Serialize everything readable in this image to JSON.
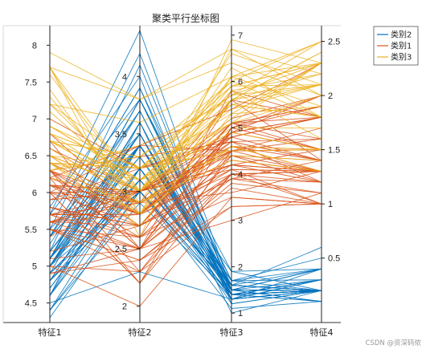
{
  "chart_data": {
    "type": "parallel-coordinates",
    "title": "聚类平行坐标图",
    "axes": [
      {
        "name": "特征1",
        "range": [
          4.3,
          8.2
        ],
        "ticks": [
          "8",
          "7.5",
          "7",
          "6.5",
          "6",
          "5.5",
          "5",
          "4.5"
        ],
        "tick_values": [
          8,
          7.5,
          7,
          6.5,
          6,
          5.5,
          5,
          4.5
        ]
      },
      {
        "name": "特征2",
        "range": [
          1.9,
          4.4
        ],
        "ticks": [
          "4",
          "3.5",
          "3",
          "2.5",
          "2"
        ],
        "tick_values": [
          4,
          3.5,
          3,
          2.5,
          2
        ]
      },
      {
        "name": "特征3",
        "range": [
          0.9,
          7.1
        ],
        "ticks": [
          "7",
          "6",
          "5",
          "4",
          "3",
          "2",
          "1"
        ],
        "tick_values": [
          7,
          6,
          5,
          4,
          3,
          2,
          1
        ]
      },
      {
        "name": "特征4",
        "range": [
          -0.05,
          2.6
        ],
        "ticks": [
          "2.5",
          "2",
          "1.5",
          "1",
          "0.5"
        ],
        "tick_values": [
          2.5,
          2,
          1.5,
          1,
          0.5
        ]
      }
    ],
    "series": [
      {
        "name": "类别2",
        "color": "#0072BD",
        "lines": [
          [
            5.1,
            3.5,
            1.4,
            0.2
          ],
          [
            4.9,
            3.0,
            1.4,
            0.2
          ],
          [
            4.7,
            3.2,
            1.3,
            0.2
          ],
          [
            4.6,
            3.1,
            1.5,
            0.2
          ],
          [
            5.0,
            3.6,
            1.4,
            0.2
          ],
          [
            5.4,
            3.9,
            1.7,
            0.4
          ],
          [
            4.6,
            3.4,
            1.4,
            0.3
          ],
          [
            5.0,
            3.4,
            1.5,
            0.2
          ],
          [
            4.4,
            2.9,
            1.4,
            0.2
          ],
          [
            4.9,
            3.1,
            1.5,
            0.1
          ],
          [
            5.4,
            3.7,
            1.5,
            0.2
          ],
          [
            4.8,
            3.4,
            1.6,
            0.2
          ],
          [
            4.8,
            3.0,
            1.4,
            0.1
          ],
          [
            4.3,
            3.0,
            1.1,
            0.1
          ],
          [
            5.8,
            4.0,
            1.2,
            0.2
          ],
          [
            5.7,
            4.4,
            1.5,
            0.4
          ],
          [
            5.4,
            3.9,
            1.3,
            0.4
          ],
          [
            5.1,
            3.5,
            1.4,
            0.3
          ],
          [
            5.7,
            3.8,
            1.7,
            0.3
          ],
          [
            5.1,
            3.8,
            1.5,
            0.3
          ],
          [
            5.4,
            3.4,
            1.7,
            0.2
          ],
          [
            5.1,
            3.7,
            1.5,
            0.4
          ],
          [
            4.6,
            3.6,
            1.0,
            0.2
          ],
          [
            5.1,
            3.3,
            1.7,
            0.5
          ],
          [
            4.8,
            3.4,
            1.9,
            0.2
          ],
          [
            5.0,
            3.0,
            1.6,
            0.2
          ],
          [
            5.0,
            3.4,
            1.6,
            0.4
          ],
          [
            5.2,
            3.5,
            1.5,
            0.2
          ],
          [
            5.2,
            3.4,
            1.4,
            0.2
          ],
          [
            4.7,
            3.2,
            1.6,
            0.2
          ],
          [
            4.8,
            3.1,
            1.6,
            0.2
          ],
          [
            5.4,
            3.4,
            1.5,
            0.4
          ],
          [
            5.2,
            4.1,
            1.5,
            0.1
          ],
          [
            5.5,
            4.2,
            1.4,
            0.2
          ],
          [
            4.9,
            3.1,
            1.5,
            0.2
          ],
          [
            5.0,
            3.2,
            1.2,
            0.2
          ],
          [
            5.5,
            3.5,
            1.3,
            0.2
          ],
          [
            4.9,
            3.6,
            1.4,
            0.1
          ],
          [
            4.4,
            3.0,
            1.3,
            0.2
          ],
          [
            5.1,
            3.4,
            1.5,
            0.2
          ],
          [
            5.0,
            3.5,
            1.3,
            0.3
          ],
          [
            4.5,
            2.3,
            1.3,
            0.3
          ],
          [
            4.4,
            3.2,
            1.3,
            0.2
          ],
          [
            5.0,
            3.5,
            1.6,
            0.6
          ],
          [
            5.1,
            3.8,
            1.9,
            0.4
          ],
          [
            4.8,
            3.0,
            1.4,
            0.3
          ],
          [
            5.1,
            3.8,
            1.6,
            0.2
          ],
          [
            4.6,
            3.2,
            1.4,
            0.2
          ],
          [
            5.3,
            3.7,
            1.5,
            0.2
          ],
          [
            5.0,
            3.3,
            1.4,
            0.2
          ]
        ]
      },
      {
        "name": "类别1",
        "color": "#D95319",
        "lines": [
          [
            7.0,
            3.2,
            4.7,
            1.4
          ],
          [
            6.4,
            3.2,
            4.5,
            1.5
          ],
          [
            5.5,
            2.3,
            4.0,
            1.3
          ],
          [
            6.5,
            2.8,
            4.6,
            1.5
          ],
          [
            5.7,
            2.8,
            4.5,
            1.3
          ],
          [
            6.3,
            3.3,
            4.7,
            1.6
          ],
          [
            4.9,
            2.4,
            3.3,
            1.0
          ],
          [
            6.6,
            2.9,
            4.6,
            1.3
          ],
          [
            5.2,
            2.7,
            3.9,
            1.4
          ],
          [
            5.0,
            2.0,
            3.5,
            1.0
          ],
          [
            5.9,
            3.0,
            4.2,
            1.5
          ],
          [
            6.0,
            2.2,
            4.0,
            1.0
          ],
          [
            6.1,
            2.9,
            4.7,
            1.4
          ],
          [
            5.6,
            2.9,
            3.6,
            1.3
          ],
          [
            5.6,
            3.0,
            4.5,
            1.5
          ],
          [
            5.8,
            2.7,
            4.1,
            1.0
          ],
          [
            6.2,
            2.2,
            4.5,
            1.5
          ],
          [
            5.6,
            2.5,
            3.9,
            1.1
          ],
          [
            5.9,
            3.2,
            4.8,
            1.8
          ],
          [
            6.1,
            2.8,
            4.0,
            1.3
          ],
          [
            6.3,
            2.5,
            4.9,
            1.5
          ],
          [
            6.1,
            2.8,
            4.7,
            1.2
          ],
          [
            6.4,
            2.9,
            4.3,
            1.3
          ],
          [
            6.6,
            3.0,
            4.4,
            1.4
          ],
          [
            6.8,
            2.8,
            4.8,
            1.4
          ],
          [
            6.0,
            2.9,
            4.5,
            1.5
          ],
          [
            5.7,
            2.6,
            3.5,
            1.0
          ],
          [
            5.5,
            2.4,
            3.8,
            1.1
          ],
          [
            5.5,
            2.4,
            3.7,
            1.0
          ],
          [
            5.8,
            2.7,
            3.9,
            1.2
          ],
          [
            6.0,
            2.7,
            5.1,
            1.6
          ],
          [
            5.4,
            3.0,
            4.5,
            1.5
          ],
          [
            6.0,
            3.4,
            4.5,
            1.6
          ],
          [
            6.3,
            2.3,
            4.4,
            1.3
          ],
          [
            5.6,
            3.0,
            4.1,
            1.3
          ],
          [
            5.5,
            2.5,
            4.0,
            1.3
          ],
          [
            5.5,
            2.6,
            4.4,
            1.2
          ],
          [
            6.1,
            3.0,
            4.6,
            1.4
          ],
          [
            5.8,
            2.6,
            4.0,
            1.2
          ],
          [
            5.0,
            2.3,
            3.3,
            1.0
          ],
          [
            5.6,
            2.7,
            4.2,
            1.3
          ],
          [
            5.7,
            3.0,
            4.2,
            1.2
          ],
          [
            5.7,
            2.9,
            4.2,
            1.3
          ],
          [
            6.2,
            2.9,
            4.3,
            1.3
          ],
          [
            5.1,
            2.5,
            3.0,
            1.1
          ],
          [
            5.7,
            2.8,
            4.1,
            1.3
          ],
          [
            5.8,
            2.7,
            5.1,
            1.9
          ],
          [
            6.3,
            2.9,
            5.6,
            1.8
          ],
          [
            4.9,
            2.5,
            4.5,
            1.7
          ],
          [
            6.7,
            2.5,
            5.8,
            1.8
          ],
          [
            5.7,
            2.5,
            5.0,
            2.0
          ],
          [
            6.0,
            2.2,
            5.0,
            1.5
          ],
          [
            5.6,
            2.8,
            4.9,
            2.0
          ],
          [
            6.3,
            2.7,
            4.9,
            1.8
          ],
          [
            6.2,
            2.8,
            4.8,
            1.8
          ],
          [
            6.1,
            3.0,
            4.9,
            1.8
          ],
          [
            6.3,
            2.8,
            5.1,
            1.5
          ],
          [
            6.1,
            2.6,
            5.6,
            1.4
          ],
          [
            6.0,
            3.0,
            4.8,
            1.8
          ],
          [
            5.8,
            2.7,
            5.1,
            1.9
          ],
          [
            6.3,
            2.5,
            5.0,
            1.9
          ],
          [
            6.5,
            3.0,
            5.2,
            2.0
          ],
          [
            6.2,
            3.4,
            5.4,
            2.3
          ],
          [
            5.9,
            3.0,
            5.1,
            1.8
          ]
        ]
      },
      {
        "name": "类别3",
        "color": "#EDB120",
        "lines": [
          [
            6.9,
            3.1,
            4.9,
            1.5
          ],
          [
            6.7,
            3.0,
            5.0,
            1.7
          ],
          [
            6.7,
            3.1,
            4.4,
            1.4
          ],
          [
            6.2,
            2.9,
            4.3,
            1.3
          ],
          [
            6.9,
            3.1,
            5.4,
            2.1
          ],
          [
            6.8,
            3.2,
            5.9,
            2.3
          ],
          [
            6.7,
            3.3,
            5.7,
            2.5
          ],
          [
            6.7,
            3.0,
            5.2,
            2.3
          ],
          [
            6.4,
            2.7,
            5.3,
            1.9
          ],
          [
            6.5,
            3.0,
            5.8,
            2.2
          ],
          [
            7.6,
            3.0,
            6.6,
            2.1
          ],
          [
            7.3,
            2.9,
            6.3,
            1.8
          ],
          [
            7.2,
            3.6,
            6.1,
            2.5
          ],
          [
            6.5,
            3.2,
            5.1,
            2.0
          ],
          [
            6.8,
            3.0,
            5.5,
            2.1
          ],
          [
            6.4,
            3.2,
            5.3,
            2.3
          ],
          [
            6.5,
            3.0,
            5.5,
            1.8
          ],
          [
            7.7,
            3.8,
            6.7,
            2.2
          ],
          [
            7.7,
            2.6,
            6.9,
            2.3
          ],
          [
            6.9,
            3.2,
            5.7,
            2.3
          ],
          [
            7.7,
            2.8,
            6.7,
            2.0
          ],
          [
            6.7,
            3.3,
            5.7,
            2.1
          ],
          [
            7.2,
            3.2,
            6.0,
            1.8
          ],
          [
            6.4,
            2.8,
            5.6,
            2.1
          ],
          [
            7.2,
            3.0,
            5.8,
            1.6
          ],
          [
            7.4,
            2.8,
            6.1,
            1.9
          ],
          [
            7.9,
            3.8,
            6.4,
            2.0
          ],
          [
            6.4,
            2.8,
            5.6,
            2.2
          ],
          [
            7.7,
            3.0,
            6.1,
            2.3
          ],
          [
            6.3,
            3.4,
            5.6,
            2.4
          ],
          [
            6.4,
            3.1,
            5.5,
            1.8
          ],
          [
            6.9,
            3.1,
            5.1,
            2.3
          ],
          [
            6.8,
            3.2,
            5.9,
            2.3
          ],
          [
            6.7,
            3.1,
            5.6,
            2.4
          ],
          [
            6.5,
            2.8,
            4.6,
            1.5
          ],
          [
            7.1,
            3.0,
            5.9,
            2.1
          ],
          [
            6.3,
            3.3,
            6.0,
            2.5
          ],
          [
            6.4,
            3.2,
            4.5,
            1.5
          ],
          [
            6.6,
            2.9,
            4.6,
            1.3
          ]
        ]
      }
    ],
    "legend": {
      "position": "top-right",
      "items": [
        "类别2",
        "类别1",
        "类别3"
      ]
    }
  },
  "watermark": "CSDN @资深码侬"
}
